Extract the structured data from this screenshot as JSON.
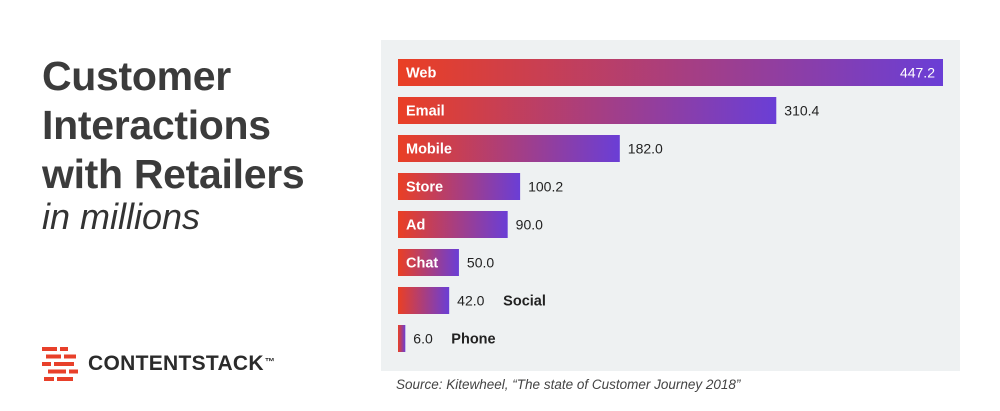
{
  "title_lines": [
    "Customer",
    "Interactions",
    "with Retailers"
  ],
  "subtitle": "in millions",
  "brand": {
    "name": "CONTENTSTACK",
    "tm": "™",
    "icon": "contentstack-logo-icon",
    "color": "#e8402a"
  },
  "source": "Source: Kitewheel, “The state of Customer Journey 2018”",
  "colors": {
    "bar_start": "#ea3f24",
    "bar_end": "#6a3ed6",
    "panel": "#eef1f2"
  },
  "chart_data": {
    "type": "bar",
    "orientation": "horizontal",
    "categories": [
      "Web",
      "Email",
      "Mobile",
      "Store",
      "Ad",
      "Chat",
      "Social",
      "Phone"
    ],
    "values": [
      447.2,
      310.4,
      182.0,
      100.2,
      90.0,
      50.0,
      42.0,
      6.0
    ],
    "value_labels": [
      "447.2",
      "310.4",
      "182.0",
      "100.2",
      "90.0",
      "50.0",
      "42.0",
      "6.0"
    ],
    "xlim": [
      0,
      447.2
    ],
    "grid": false,
    "legend": "none"
  }
}
